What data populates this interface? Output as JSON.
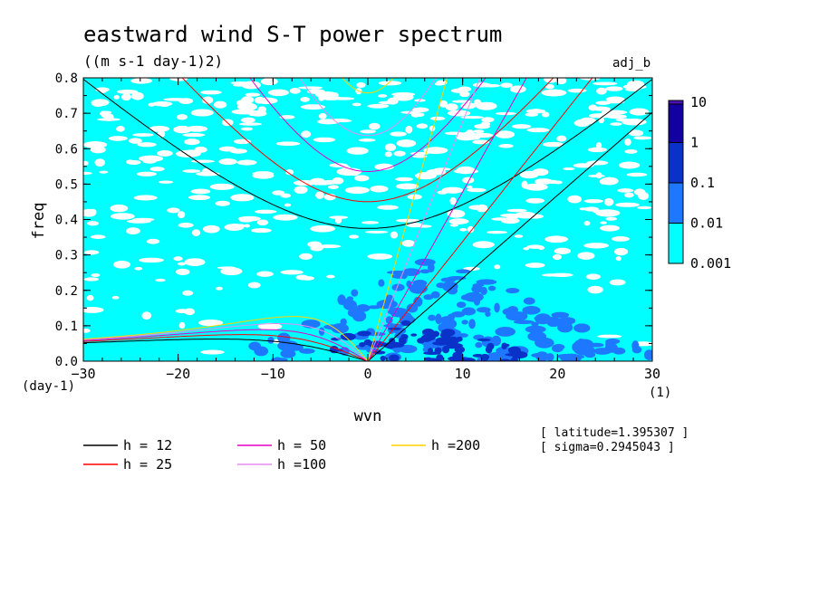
{
  "chart_data": {
    "type": "contour",
    "title": "eastward wind S-T power spectrum",
    "subtitle": "((m s-1 day-1)2)",
    "tag": "adj_b",
    "xlabel": "wvn",
    "ylabel": "freq",
    "xunit": "(1)",
    "yunit": "(day-1)",
    "xlim": [
      -30,
      30
    ],
    "ylim": [
      0,
      0.8
    ],
    "xticks": [
      -30,
      -20,
      -10,
      0,
      10,
      20,
      30
    ],
    "yticks": [
      0.0,
      0.1,
      0.2,
      0.3,
      0.4,
      0.5,
      0.6,
      0.7,
      0.8
    ],
    "colorbar": {
      "levels": [
        "0.001",
        "0.01",
        "0.1",
        "1",
        "10"
      ],
      "colors": [
        "#00ffff",
        "#1e78ff",
        "#0a32c8",
        "#1400a0",
        "#4b0fb4"
      ]
    },
    "series": [
      {
        "name": "h = 12",
        "h": 12,
        "color": "#000000"
      },
      {
        "name": "h = 25",
        "h": 25,
        "color": "#ff0000"
      },
      {
        "name": "h = 50",
        "h": 50,
        "color": "#e600c8"
      },
      {
        "name": "h =100",
        "h": 100,
        "color": "#e68cf0"
      },
      {
        "name": "h =200",
        "h": 200,
        "color": "#ffd200"
      }
    ],
    "info": [
      "[ latitude=1.395307 ]",
      "[ sigma=0.2945043 ]"
    ]
  }
}
